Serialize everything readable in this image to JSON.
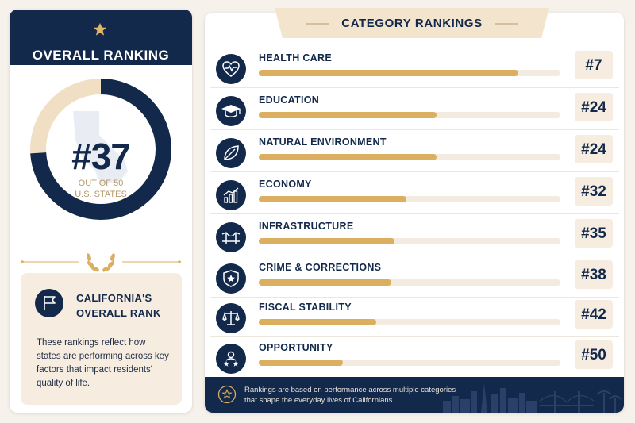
{
  "overall": {
    "title": "OVERALL RANKING",
    "rank": "#37",
    "subtitle_line1": "OUT OF 50",
    "subtitle_line2": "U.S. STATES",
    "rank_value": 37,
    "total": 50
  },
  "info": {
    "title_line1": "CALIFORNIA'S",
    "title_line2": "OVERALL RANK",
    "text": "These rankings reflect how states are performing across key factors that impact residents' quality of life."
  },
  "categories": {
    "title": "CATEGORY RANKINGS",
    "items": [
      {
        "label": "HEALTH CARE",
        "rank": "#7",
        "icon": "heart-pulse-icon",
        "score": 0.86
      },
      {
        "label": "EDUCATION",
        "rank": "#24",
        "icon": "graduation-cap-icon",
        "score": 0.59
      },
      {
        "label": "NATURAL ENVIRONMENT",
        "rank": "#24",
        "icon": "leaf-icon",
        "score": 0.59
      },
      {
        "label": "ECONOMY",
        "rank": "#32",
        "icon": "bar-chart-icon",
        "score": 0.49
      },
      {
        "label": "INFRASTRUCTURE",
        "rank": "#35",
        "icon": "bridge-icon",
        "score": 0.45
      },
      {
        "label": "CRIME & CORRECTIONS",
        "rank": "#38",
        "icon": "shield-star-icon",
        "score": 0.44
      },
      {
        "label": "FISCAL STABILITY",
        "rank": "#42",
        "icon": "scales-icon",
        "score": 0.39
      },
      {
        "label": "OPPORTUNITY",
        "rank": "#50",
        "icon": "people-icon",
        "score": 0.28
      }
    ]
  },
  "footer": {
    "line1": "Rankings are based on performance across multiple categories",
    "line2": "that shape the everyday lives of Californians."
  },
  "colors": {
    "navy": "#13294b",
    "gold": "#dcae5f",
    "cream": "#f6ece0",
    "donut_track": "#f1dfc4"
  }
}
